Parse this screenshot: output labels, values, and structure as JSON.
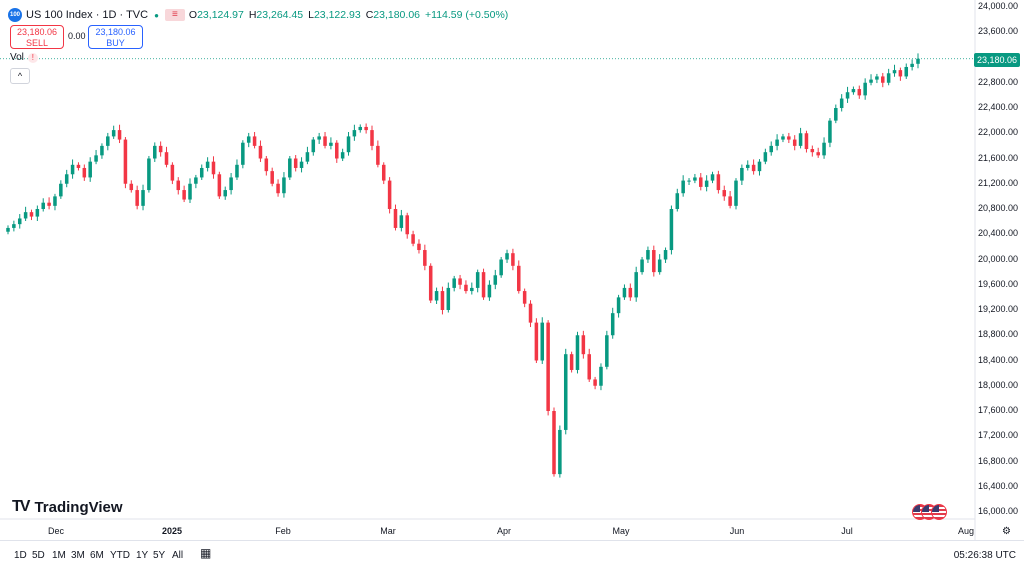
{
  "symbol": {
    "badge": "100",
    "title": "US 100 Index · 1D · TVC",
    "ohlc": [
      {
        "label": "O",
        "value": "23,124.97"
      },
      {
        "label": "H",
        "value": "23,264.45"
      },
      {
        "label": "L",
        "value": "23,122.93"
      },
      {
        "label": "C",
        "value": "23,180.06"
      },
      {
        "label": "",
        "value": "+114.59 (+0.50%)"
      }
    ]
  },
  "trade": {
    "sell_price": "23,180.06",
    "sell_label": "SELL",
    "spread": "0.00",
    "buy_price": "23,180.06",
    "buy_label": "BUY"
  },
  "volume": {
    "label": "Vol"
  },
  "current_price_tag": "23,180.06",
  "y_axis": [
    "24,000.00",
    "23,600.00",
    "23,200.00",
    "22,800.00",
    "22,400.00",
    "22,000.00",
    "21,600.00",
    "21,200.00",
    "20,800.00",
    "20,400.00",
    "20,000.00",
    "19,600.00",
    "19,200.00",
    "18,800.00",
    "18,400.00",
    "18,000.00",
    "17,600.00",
    "17,200.00",
    "16,800.00",
    "16,400.00",
    "16,000.00"
  ],
  "x_axis": [
    "Dec",
    "2025",
    "Feb",
    "Mar",
    "Apr",
    "May",
    "Jun",
    "Jul",
    "Aug"
  ],
  "brand": "TradingView",
  "timeframes": [
    "1D",
    "5D",
    "1M",
    "3M",
    "6M",
    "YTD",
    "1Y",
    "5Y",
    "All"
  ],
  "clock": "05:26:38 UTC",
  "colors": {
    "up": "#089981",
    "down": "#f23645",
    "accent": "#2962ff"
  },
  "chart_data": {
    "type": "candlestick",
    "title": "US 100 Index · 1D · TVC",
    "ylim": [
      16000,
      24000
    ],
    "y_ticks": [
      24000,
      23600,
      23200,
      22800,
      22400,
      22000,
      21600,
      21200,
      20800,
      20400,
      20000,
      19600,
      19200,
      18800,
      18400,
      18000,
      17600,
      17200,
      16800,
      16400,
      16000
    ],
    "x_ticks": [
      "Dec",
      "2025",
      "Feb",
      "Mar",
      "Apr",
      "May",
      "Jun",
      "Jul",
      "Aug"
    ],
    "last_close": 23180.06,
    "closes": [
      20500,
      20560,
      20650,
      20750,
      20680,
      20800,
      20900,
      20850,
      21000,
      21200,
      21350,
      21500,
      21450,
      21300,
      21550,
      21650,
      21800,
      21950,
      22050,
      21900,
      21200,
      21100,
      20850,
      21100,
      21600,
      21800,
      21700,
      21500,
      21250,
      21100,
      20950,
      21200,
      21300,
      21450,
      21550,
      21350,
      21000,
      21100,
      21300,
      21500,
      21850,
      21950,
      21800,
      21600,
      21400,
      21200,
      21050,
      21300,
      21600,
      21450,
      21550,
      21700,
      21900,
      21950,
      21800,
      21850,
      21600,
      21700,
      21950,
      22050,
      22100,
      22050,
      21800,
      21500,
      21250,
      20800,
      20500,
      20700,
      20400,
      20250,
      20150,
      19900,
      19350,
      19500,
      19200,
      19550,
      19700,
      19600,
      19500,
      19550,
      19800,
      19400,
      19600,
      19750,
      20000,
      20100,
      19900,
      19500,
      19300,
      19000,
      18400,
      19000,
      17600,
      16600,
      17300,
      18500,
      18250,
      18800,
      18500,
      18100,
      18000,
      18300,
      18800,
      19150,
      19400,
      19550,
      19400,
      19800,
      20000,
      20150,
      19800,
      20000,
      20150,
      20800,
      21050,
      21250,
      21250,
      21300,
      21150,
      21250,
      21350,
      21100,
      21000,
      20850,
      21250,
      21450,
      21500,
      21400,
      21550,
      21700,
      21800,
      21900,
      21950,
      21900,
      21800,
      22000,
      21750,
      21700,
      21650,
      21850,
      22200,
      22400,
      22550,
      22650,
      22700,
      22600,
      22800,
      22850,
      22900,
      22800,
      22950,
      23000,
      22900,
      23050,
      23100,
      23180
    ]
  }
}
